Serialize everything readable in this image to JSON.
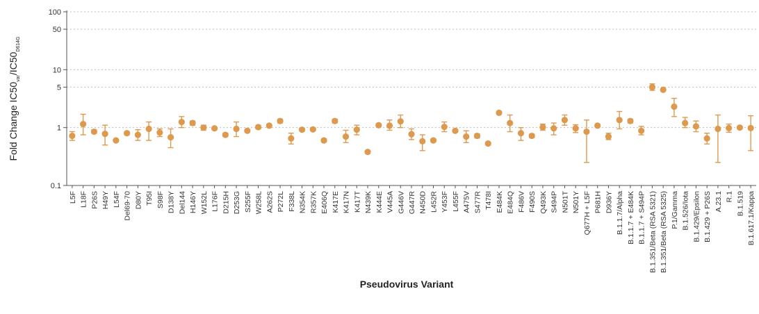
{
  "chart_data": {
    "type": "scatter",
    "xlabel": "Pseudovirus Variant",
    "ylabel": {
      "main": "Fold Change IC50",
      "sub1": "var",
      "mid": "/IC50",
      "sub2": "D614G"
    },
    "yscale": "log",
    "ylim": [
      0.1,
      100
    ],
    "yticks": [
      0.1,
      1,
      5,
      10,
      50,
      100
    ],
    "ytick_labels": [
      "0.1",
      "1",
      "5",
      "10",
      "50",
      "100"
    ],
    "grid": "horizontal dotted at 1, 5, 10, 50, 100",
    "marker_color": "#dd9a4e",
    "categories": [
      "L5F",
      "L18F",
      "P26S",
      "H49Y",
      "L54F",
      "Del69-70",
      "D80Y",
      "T95I",
      "S98F",
      "D138Y",
      "Del144",
      "H146Y",
      "W152L",
      "L176F",
      "D215H",
      "D253G",
      "S255F",
      "W258L",
      "A262S",
      "P272L",
      "F338L",
      "N354K",
      "R357K",
      "E406Q",
      "K417E",
      "K417N",
      "K417T",
      "N439K",
      "K444E",
      "V445A",
      "G446V",
      "G447R",
      "N450D",
      "L452R",
      "Y453F",
      "L455F",
      "A475V",
      "S477R",
      "T478I",
      "E484K",
      "E484Q",
      "F486V",
      "F490S",
      "Q493K",
      "S494P",
      "N501T",
      "N501Y",
      "Q677H + L5F",
      "P681H",
      "D936Y",
      "B.1.1.7/Alpha",
      "B.1.1.7 + E484K",
      "B.1.1.7 + S494P",
      "B.1.351/Beta (RSA 5321)",
      "B.1.351/Beta (RSA 5325)",
      "P.1/Gamma",
      "B.1.526/Iota",
      "B.1.429/Epsilon",
      "B.1.429 + P26S",
      "A.23.1",
      "R.1",
      "B.1.519",
      "B.1.617.1/Kappa"
    ],
    "values": [
      0.72,
      1.15,
      0.85,
      0.78,
      0.6,
      0.8,
      0.75,
      0.95,
      0.82,
      0.68,
      1.25,
      1.2,
      1.0,
      0.97,
      0.75,
      0.95,
      0.88,
      1.02,
      1.08,
      1.3,
      0.65,
      0.92,
      0.93,
      0.6,
      1.3,
      0.7,
      0.92,
      0.38,
      1.1,
      1.08,
      1.28,
      0.77,
      0.58,
      0.6,
      1.03,
      0.88,
      0.7,
      0.72,
      0.53,
      1.8,
      1.2,
      0.8,
      0.72,
      1.02,
      0.97,
      1.35,
      0.97,
      0.85,
      1.08,
      0.7,
      1.35,
      1.3,
      0.88,
      5.0,
      4.5,
      2.3,
      1.2,
      1.05,
      0.65,
      0.95,
      0.98,
      1.0,
      0.98
    ],
    "errors": [
      [
        0.6,
        0.85
      ],
      [
        0.75,
        1.7
      ],
      [
        0.8,
        0.92
      ],
      [
        0.5,
        1.1
      ],
      [
        0.57,
        0.63
      ],
      [
        0.75,
        0.85
      ],
      [
        0.6,
        0.92
      ],
      [
        0.6,
        1.25
      ],
      [
        0.7,
        0.95
      ],
      [
        0.45,
        0.95
      ],
      [
        1.0,
        1.55
      ],
      [
        1.1,
        1.3
      ],
      [
        0.9,
        1.1
      ],
      [
        0.92,
        1.02
      ],
      [
        0.7,
        0.8
      ],
      [
        0.7,
        1.25
      ],
      [
        0.83,
        0.93
      ],
      [
        0.95,
        1.1
      ],
      [
        1.02,
        1.14
      ],
      [
        1.2,
        1.4
      ],
      [
        0.52,
        0.8
      ],
      [
        0.87,
        0.97
      ],
      [
        0.88,
        0.98
      ],
      [
        0.56,
        0.64
      ],
      [
        1.2,
        1.4
      ],
      [
        0.55,
        0.9
      ],
      [
        0.75,
        1.1
      ],
      [
        0.36,
        0.4
      ],
      [
        1.03,
        1.17
      ],
      [
        0.9,
        1.35
      ],
      [
        1.0,
        1.65
      ],
      [
        0.62,
        0.95
      ],
      [
        0.4,
        0.75
      ],
      [
        0.56,
        0.64
      ],
      [
        0.85,
        1.25
      ],
      [
        0.83,
        0.93
      ],
      [
        0.55,
        0.88
      ],
      [
        0.66,
        0.78
      ],
      [
        0.5,
        0.56
      ],
      [
        1.7,
        1.9
      ],
      [
        0.85,
        1.65
      ],
      [
        0.6,
        1.0
      ],
      [
        0.67,
        0.77
      ],
      [
        0.9,
        1.15
      ],
      [
        0.75,
        1.2
      ],
      [
        1.1,
        1.65
      ],
      [
        0.82,
        1.12
      ],
      [
        0.25,
        1.35
      ],
      [
        1.02,
        1.14
      ],
      [
        0.62,
        0.8
      ],
      [
        0.95,
        1.9
      ],
      [
        1.2,
        1.4
      ],
      [
        0.75,
        1.05
      ],
      [
        4.4,
        5.7
      ],
      [
        4.3,
        4.7
      ],
      [
        1.55,
        3.2
      ],
      [
        1.0,
        1.5
      ],
      [
        0.85,
        1.3
      ],
      [
        0.52,
        0.8
      ],
      [
        0.25,
        1.65
      ],
      [
        0.83,
        1.15
      ],
      [
        0.95,
        1.05
      ],
      [
        0.4,
        1.6
      ]
    ]
  }
}
